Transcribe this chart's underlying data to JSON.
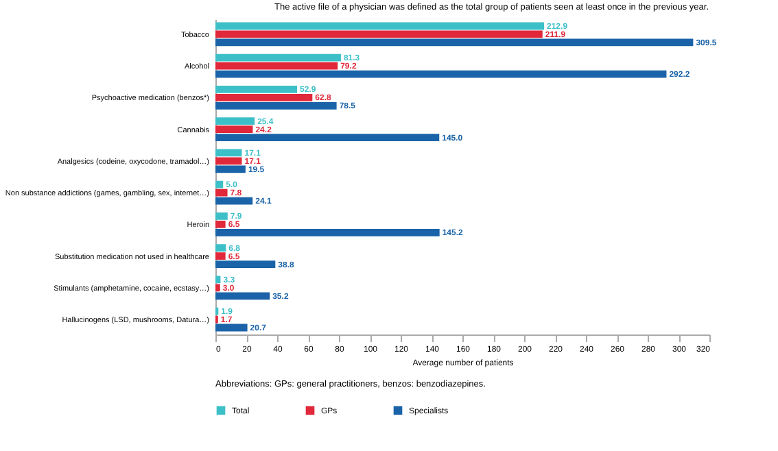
{
  "chart_data": {
    "type": "bar",
    "orientation": "horizontal",
    "xlabel": "Average number of patients",
    "categories": [
      "Tobacco",
      "Alcohol",
      "Psychoactive medication (benzos*)",
      "Cannabis",
      "Analgesics (codeine, oxycodone, tramadol…)",
      "Non substance addictions (games, gambling, sex, internet…)",
      "Heroin",
      "Substitution medication not used in healthcare",
      "Stimulants (amphetamine, cocaine, ecstasy…)",
      "Hallucinogens (LSD, mushrooms, Datura…)"
    ],
    "series": [
      {
        "name": "Total",
        "color": "#3dbfc8",
        "values": [
          212.9,
          81.3,
          52.9,
          25.4,
          17.1,
          5.0,
          7.9,
          6.8,
          3.3,
          1.9
        ],
        "value_labels": [
          "212.9",
          "81.3",
          "52.9",
          "25.4",
          "17.1",
          "5.0",
          "7.9",
          "6.8",
          "3.3",
          "1.9"
        ]
      },
      {
        "name": "GPs",
        "color": "#e0283a",
        "values": [
          211.9,
          79.2,
          62.8,
          24.2,
          17.1,
          7.8,
          6.5,
          6.5,
          3.0,
          1.7
        ],
        "value_labels": [
          "211.9",
          "79.2",
          "62.8",
          "24.2",
          "17.1",
          "7.8",
          "6.5",
          "6.5",
          "3.0",
          "1.7"
        ]
      },
      {
        "name": "Specialists",
        "color": "#1a63a8",
        "values": [
          309.5,
          292.2,
          78.5,
          145.0,
          19.5,
          24.1,
          145.2,
          38.8,
          35.2,
          20.7
        ],
        "value_labels": [
          "309.5",
          "292.2",
          "78.5",
          "145.0",
          "19.5",
          "24.1",
          "145.2",
          "38.8",
          "35.2",
          "20.7"
        ]
      }
    ],
    "xlim": [
      0,
      320
    ],
    "xticks": [
      0,
      20,
      40,
      60,
      80,
      100,
      120,
      140,
      160,
      180,
      200,
      220,
      240,
      260,
      280,
      300,
      320
    ],
    "grid": false,
    "legend": "bottom",
    "annotations": [
      "The active file of a physician was defined as the total group of patients seen at least once in the previous year.",
      "Abbreviations: GPs: general practitioners, benzos: benzodiazepines."
    ]
  }
}
